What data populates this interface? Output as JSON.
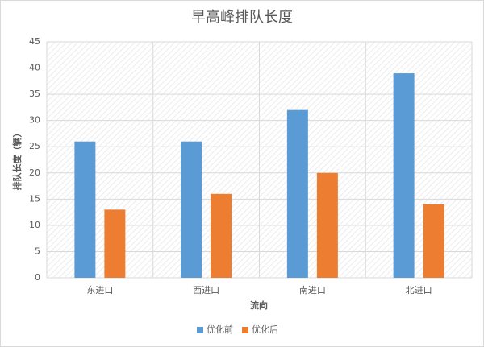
{
  "chart_data": {
    "type": "bar",
    "title": "早高峰排队长度",
    "x_label": "流向",
    "y_label": "排队长度（辆）",
    "categories": [
      "东进口",
      "西进口",
      "南进口",
      "北进口"
    ],
    "series": [
      {
        "name": "优化前",
        "color": "#5b9bd5",
        "values": [
          26,
          26,
          32,
          39
        ]
      },
      {
        "name": "优化后",
        "color": "#ed7d31",
        "values": [
          13,
          16,
          20,
          14
        ]
      }
    ],
    "ylim": [
      0,
      45
    ],
    "yticks": [
      0,
      5,
      10,
      15,
      20,
      25,
      30,
      35,
      40,
      45
    ],
    "grid": true,
    "legend": "bottom"
  }
}
